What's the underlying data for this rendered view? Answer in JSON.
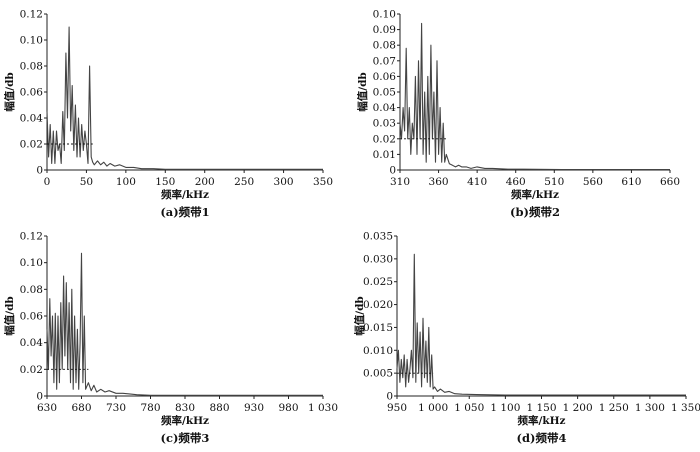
{
  "figure": {
    "chart_data": [
      {
        "type": "line",
        "caption": "(a)频带1",
        "xlabel": "频率/kHz",
        "ylabel": "幅值/db",
        "xlim": [
          0,
          350
        ],
        "ylim": [
          0,
          0.12
        ],
        "xticks": [
          "0",
          "50",
          "100",
          "150",
          "200",
          "250",
          "300",
          "350"
        ],
        "yticks": [
          "0",
          "0.02",
          "0.04",
          "0.06",
          "0.08",
          "0.10",
          "0.12"
        ],
        "series": [
          {
            "x": [
              0,
              2,
              4,
              6,
              8,
              10,
              12,
              14,
              16,
              18,
              20,
              22,
              24,
              26,
              28,
              30,
              32,
              34,
              36,
              38,
              40,
              42,
              44,
              46,
              48,
              50,
              52,
              54,
              56,
              58,
              60,
              64,
              68,
              72,
              76,
              80,
              86,
              92,
              100,
              110,
              120,
              135,
              150,
              200,
              250,
              300,
              350
            ],
            "y": [
              0.045,
              0.01,
              0.035,
              0.005,
              0.03,
              0.005,
              0.03,
              0.015,
              0.02,
              0.005,
              0.045,
              0.015,
              0.09,
              0.04,
              0.11,
              0.03,
              0.065,
              0.015,
              0.05,
              0.01,
              0.04,
              0.01,
              0.035,
              0.015,
              0.03,
              0.02,
              0.005,
              0.08,
              0.01,
              0.006,
              0.004,
              0.007,
              0.004,
              0.006,
              0.003,
              0.005,
              0.003,
              0.004,
              0.002,
              0.002,
              0.001,
              0.001,
              0.0005,
              0.0005,
              0.0005,
              0.0005,
              0.0005
            ]
          }
        ],
        "mean_line": {
          "x": [
            0,
            58
          ],
          "y": 0.02
        }
      },
      {
        "type": "line",
        "caption": "(b)频带2",
        "xlabel": "频率/kHz",
        "ylabel": "幅值/db",
        "xlim": [
          310,
          660
        ],
        "ylim": [
          0,
          0.1
        ],
        "xticks": [
          "310",
          "360",
          "410",
          "460",
          "510",
          "560",
          "610",
          "660"
        ],
        "yticks": [
          "0",
          "0.01",
          "0.02",
          "0.03",
          "0.04",
          "0.05",
          "0.06",
          "0.07",
          "0.08",
          "0.09",
          "0.10"
        ],
        "series": [
          {
            "x": [
              310,
              312,
              314,
              316,
              318,
              320,
              322,
              324,
              326,
              328,
              330,
              332,
              334,
              336,
              338,
              340,
              342,
              344,
              346,
              348,
              350,
              352,
              354,
              356,
              358,
              360,
              362,
              364,
              366,
              368,
              370,
              374,
              378,
              382,
              386,
              390,
              396,
              402,
              410,
              420,
              430,
              450,
              470,
              520,
              580,
              620,
              660
            ],
            "y": [
              0.03,
              0.02,
              0.04,
              0.025,
              0.078,
              0.02,
              0.04,
              0.01,
              0.03,
              0.02,
              0.06,
              0.01,
              0.07,
              0.02,
              0.094,
              0.01,
              0.05,
              0.005,
              0.06,
              0.01,
              0.08,
              0.02,
              0.05,
              0.005,
              0.07,
              0.01,
              0.04,
              0.005,
              0.03,
              0.005,
              0.01,
              0.004,
              0.003,
              0.002,
              0.003,
              0.002,
              0.002,
              0.001,
              0.002,
              0.001,
              0.001,
              0.0005,
              0.0005,
              0.0003,
              0.0003,
              0.0003,
              0.0003
            ]
          }
        ],
        "mean_line": {
          "x": [
            310,
            372
          ],
          "y": 0.02
        }
      },
      {
        "type": "line",
        "caption": "(c)频带3",
        "xlabel": "频率/kHz",
        "ylabel": "幅值/db",
        "xlim": [
          630,
          1030
        ],
        "ylim": [
          0,
          0.12
        ],
        "xticks": [
          "630",
          "680",
          "730",
          "780",
          "830",
          "880",
          "930",
          "980",
          "1 030"
        ],
        "yticks": [
          "0",
          "0.02",
          "0.04",
          "0.06",
          "0.08",
          "0.10",
          "0.12"
        ],
        "series": [
          {
            "x": [
              630,
              632,
              634,
              636,
              638,
              640,
              642,
              644,
              646,
              648,
              650,
              652,
              654,
              656,
              658,
              660,
              662,
              664,
              666,
              668,
              670,
              672,
              674,
              676,
              678,
              680,
              682,
              684,
              686,
              690,
              694,
              698,
              702,
              708,
              714,
              720,
              730,
              740,
              760,
              780,
              830,
              880,
              930,
              980,
              1030
            ],
            "y": [
              0.05,
              0.02,
              0.073,
              0.03,
              0.06,
              0.01,
              0.062,
              0.005,
              0.06,
              0.01,
              0.07,
              0.02,
              0.09,
              0.03,
              0.085,
              0.02,
              0.07,
              0.01,
              0.08,
              0.005,
              0.06,
              0.01,
              0.05,
              0.005,
              0.04,
              0.107,
              0.01,
              0.06,
              0.005,
              0.01,
              0.004,
              0.008,
              0.003,
              0.005,
              0.003,
              0.004,
              0.002,
              0.002,
              0.001,
              0.0005,
              0.0005,
              0.0005,
              0.0005,
              0.0005,
              0.0005
            ]
          }
        ],
        "mean_line": {
          "x": [
            630,
            690
          ],
          "y": 0.02
        }
      },
      {
        "type": "line",
        "caption": "(d)频带4",
        "xlabel": "频率/kHz",
        "ylabel": "幅值/db",
        "xlim": [
          950,
          1350
        ],
        "ylim": [
          0,
          0.035
        ],
        "xticks": [
          "950",
          "1 000",
          "1 050",
          "1 100",
          "1 150",
          "1 200",
          "1 250",
          "1 300",
          "1 350"
        ],
        "yticks": [
          "0",
          "0.005",
          "0.010",
          "0.015",
          "0.020",
          "0.025",
          "0.030",
          "0.035"
        ],
        "series": [
          {
            "x": [
              950,
              952,
              954,
              956,
              958,
              960,
              962,
              964,
              966,
              968,
              970,
              972,
              974,
              976,
              978,
              980,
              982,
              984,
              986,
              988,
              990,
              992,
              994,
              996,
              998,
              1000,
              1002,
              1006,
              1010,
              1016,
              1022,
              1030,
              1040,
              1060,
              1100,
              1200,
              1300,
              1350
            ],
            "y": [
              0.006,
              0.01,
              0.003,
              0.008,
              0.004,
              0.009,
              0.002,
              0.008,
              0.003,
              0.006,
              0.01,
              0.004,
              0.031,
              0.003,
              0.016,
              0.005,
              0.014,
              0.002,
              0.017,
              0.004,
              0.012,
              0.003,
              0.015,
              0.002,
              0.009,
              0.0015,
              0.002,
              0.001,
              0.0015,
              0.0008,
              0.001,
              0.0005,
              0.0004,
              0.0003,
              0.0002,
              0.0002,
              0.0002,
              0.0002
            ]
          }
        ],
        "mean_line": {
          "x": [
            950,
            1000
          ],
          "y": 0.005
        }
      }
    ]
  }
}
